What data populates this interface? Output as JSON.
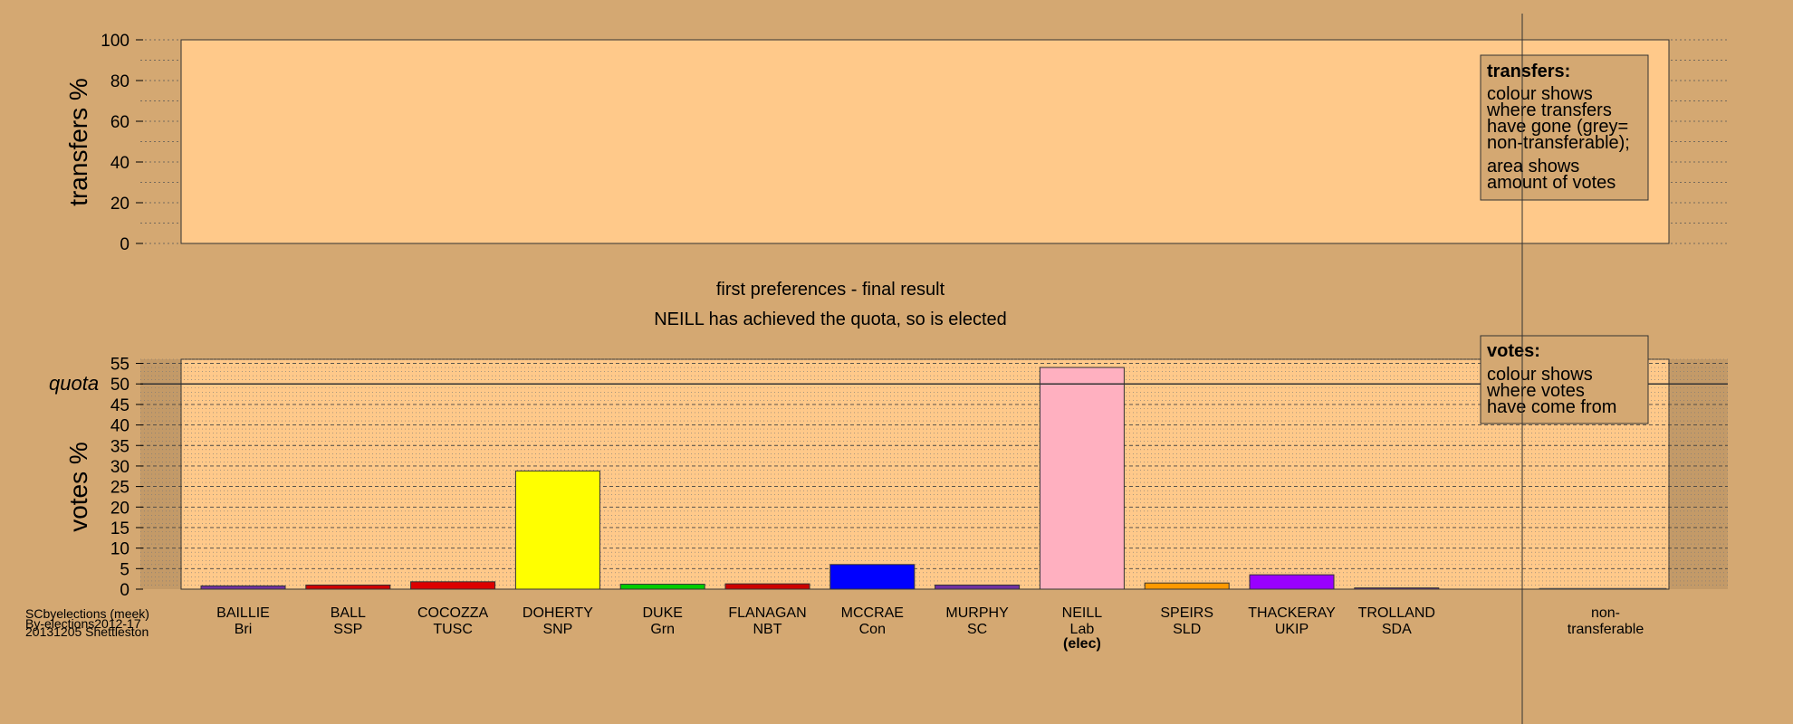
{
  "chart_data": [
    {
      "type": "bar",
      "panel": "transfers",
      "ylabel": "transfers %",
      "ylim": [
        0,
        100
      ],
      "yticks": [
        0,
        20,
        40,
        60,
        80,
        100
      ],
      "grid": true,
      "values": [],
      "legend": {
        "title": "transfers:",
        "lines": [
          "colour shows",
          "where transfers",
          "have gone (grey=",
          "non-transferable);",
          "area shows",
          "amount of votes"
        ],
        "position": "top-right"
      }
    },
    {
      "type": "bar",
      "panel": "votes",
      "ylabel": "votes %",
      "ylim": [
        0,
        56
      ],
      "yticks": [
        0,
        5,
        10,
        15,
        20,
        25,
        30,
        35,
        40,
        45,
        50,
        55
      ],
      "quota": 50,
      "quota_label": "quota",
      "grid": true,
      "categories": [
        {
          "name": "BAILLIE",
          "party": "Bri",
          "value": 0.8,
          "color": "#7030a0"
        },
        {
          "name": "BALL",
          "party": "SSP",
          "value": 1.0,
          "color": "#cc0000"
        },
        {
          "name": "COCOZZA",
          "party": "TUSC",
          "value": 1.8,
          "color": "#dd0000"
        },
        {
          "name": "DOHERTY",
          "party": "SNP",
          "value": 28.8,
          "color": "#ffff00"
        },
        {
          "name": "DUKE",
          "party": "Grn",
          "value": 1.2,
          "color": "#00cc00"
        },
        {
          "name": "FLANAGAN",
          "party": "NBT",
          "value": 1.3,
          "color": "#cc0000"
        },
        {
          "name": "MCCRAE",
          "party": "Con",
          "value": 6.0,
          "color": "#0000ff"
        },
        {
          "name": "MURPHY",
          "party": "SC",
          "value": 1.0,
          "color": "#7030a0"
        },
        {
          "name": "NEILL",
          "party": "Lab",
          "value": 54.0,
          "color": "#ffb0c0",
          "note": "(elec)"
        },
        {
          "name": "SPEIRS",
          "party": "SLD",
          "value": 1.5,
          "color": "#ff9900"
        },
        {
          "name": "THACKERAY",
          "party": "UKIP",
          "value": 3.5,
          "color": "#9900ff"
        },
        {
          "name": "TROLLAND",
          "party": "SDA",
          "value": 0.3,
          "color": "#7030a0"
        }
      ],
      "nontransferable": {
        "label_line1": "non-",
        "label_line2": "transferable",
        "value": 0.2,
        "color": "#888888"
      },
      "legend": {
        "title": "votes:",
        "lines": [
          "colour shows",
          "where votes",
          "have come from"
        ],
        "position": "top-right"
      }
    }
  ],
  "heading": {
    "line1": "first preferences - final result",
    "line2": "NEILL has achieved the quota, so is elected"
  },
  "footer": {
    "line1": "SCbyelections (meek)",
    "line2": "By-elections2012-17",
    "line3": "20131205 Shettleston"
  },
  "colors": {
    "background": "#d4a872",
    "plot": "#ffc98a",
    "border": "#333333"
  }
}
